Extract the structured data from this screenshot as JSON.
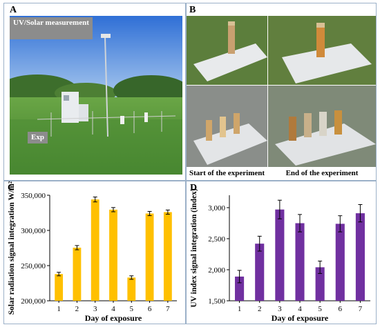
{
  "panels": {
    "a": {
      "letter": "A",
      "uv_label": "UV/Solar measurement",
      "exp_label": "Exp"
    },
    "b": {
      "letter": "B",
      "caption_start": "Start of the experiment",
      "caption_end": "End of the experiment"
    },
    "c": {
      "letter": "C"
    },
    "d": {
      "letter": "D"
    }
  },
  "colors": {
    "solar_bar": "#ffc000",
    "uv_bar": "#7030a0",
    "sky": "#3a7ad8",
    "grass": "#5c9a3a"
  },
  "chart_data": [
    {
      "type": "bar",
      "categories": [
        "1",
        "2",
        "3",
        "4",
        "5",
        "6",
        "7"
      ],
      "values": [
        238000,
        275500,
        344000,
        329500,
        233000,
        324000,
        326000
      ],
      "errors": [
        2500,
        3000,
        3500,
        3000,
        2500,
        3000,
        3000
      ],
      "title": "",
      "xlabel": "Day of exposure",
      "ylabel": "Solar radiation signal integration W/m²",
      "ylim": [
        200000,
        350000
      ],
      "yticks": [
        200000,
        250000,
        300000,
        350000
      ],
      "ytick_labels": [
        "200,000",
        "250,000",
        "300,000",
        "350,000"
      ],
      "grid": false
    },
    {
      "type": "bar",
      "categories": [
        "1",
        "2",
        "3",
        "4",
        "5",
        "6",
        "7"
      ],
      "values": [
        1890,
        2420,
        2970,
        2750,
        2040,
        2740,
        2910
      ],
      "errors": [
        100,
        120,
        150,
        140,
        100,
        130,
        140
      ],
      "title": "",
      "xlabel": "Day of exposure",
      "ylabel": "UV index signal integration (index)",
      "ylim": [
        1500,
        3200
      ],
      "yticks": [
        1500,
        2000,
        2500,
        3000
      ],
      "ytick_labels": [
        "1,500",
        "2,000",
        "2,500",
        "3,000"
      ],
      "grid": false
    }
  ]
}
